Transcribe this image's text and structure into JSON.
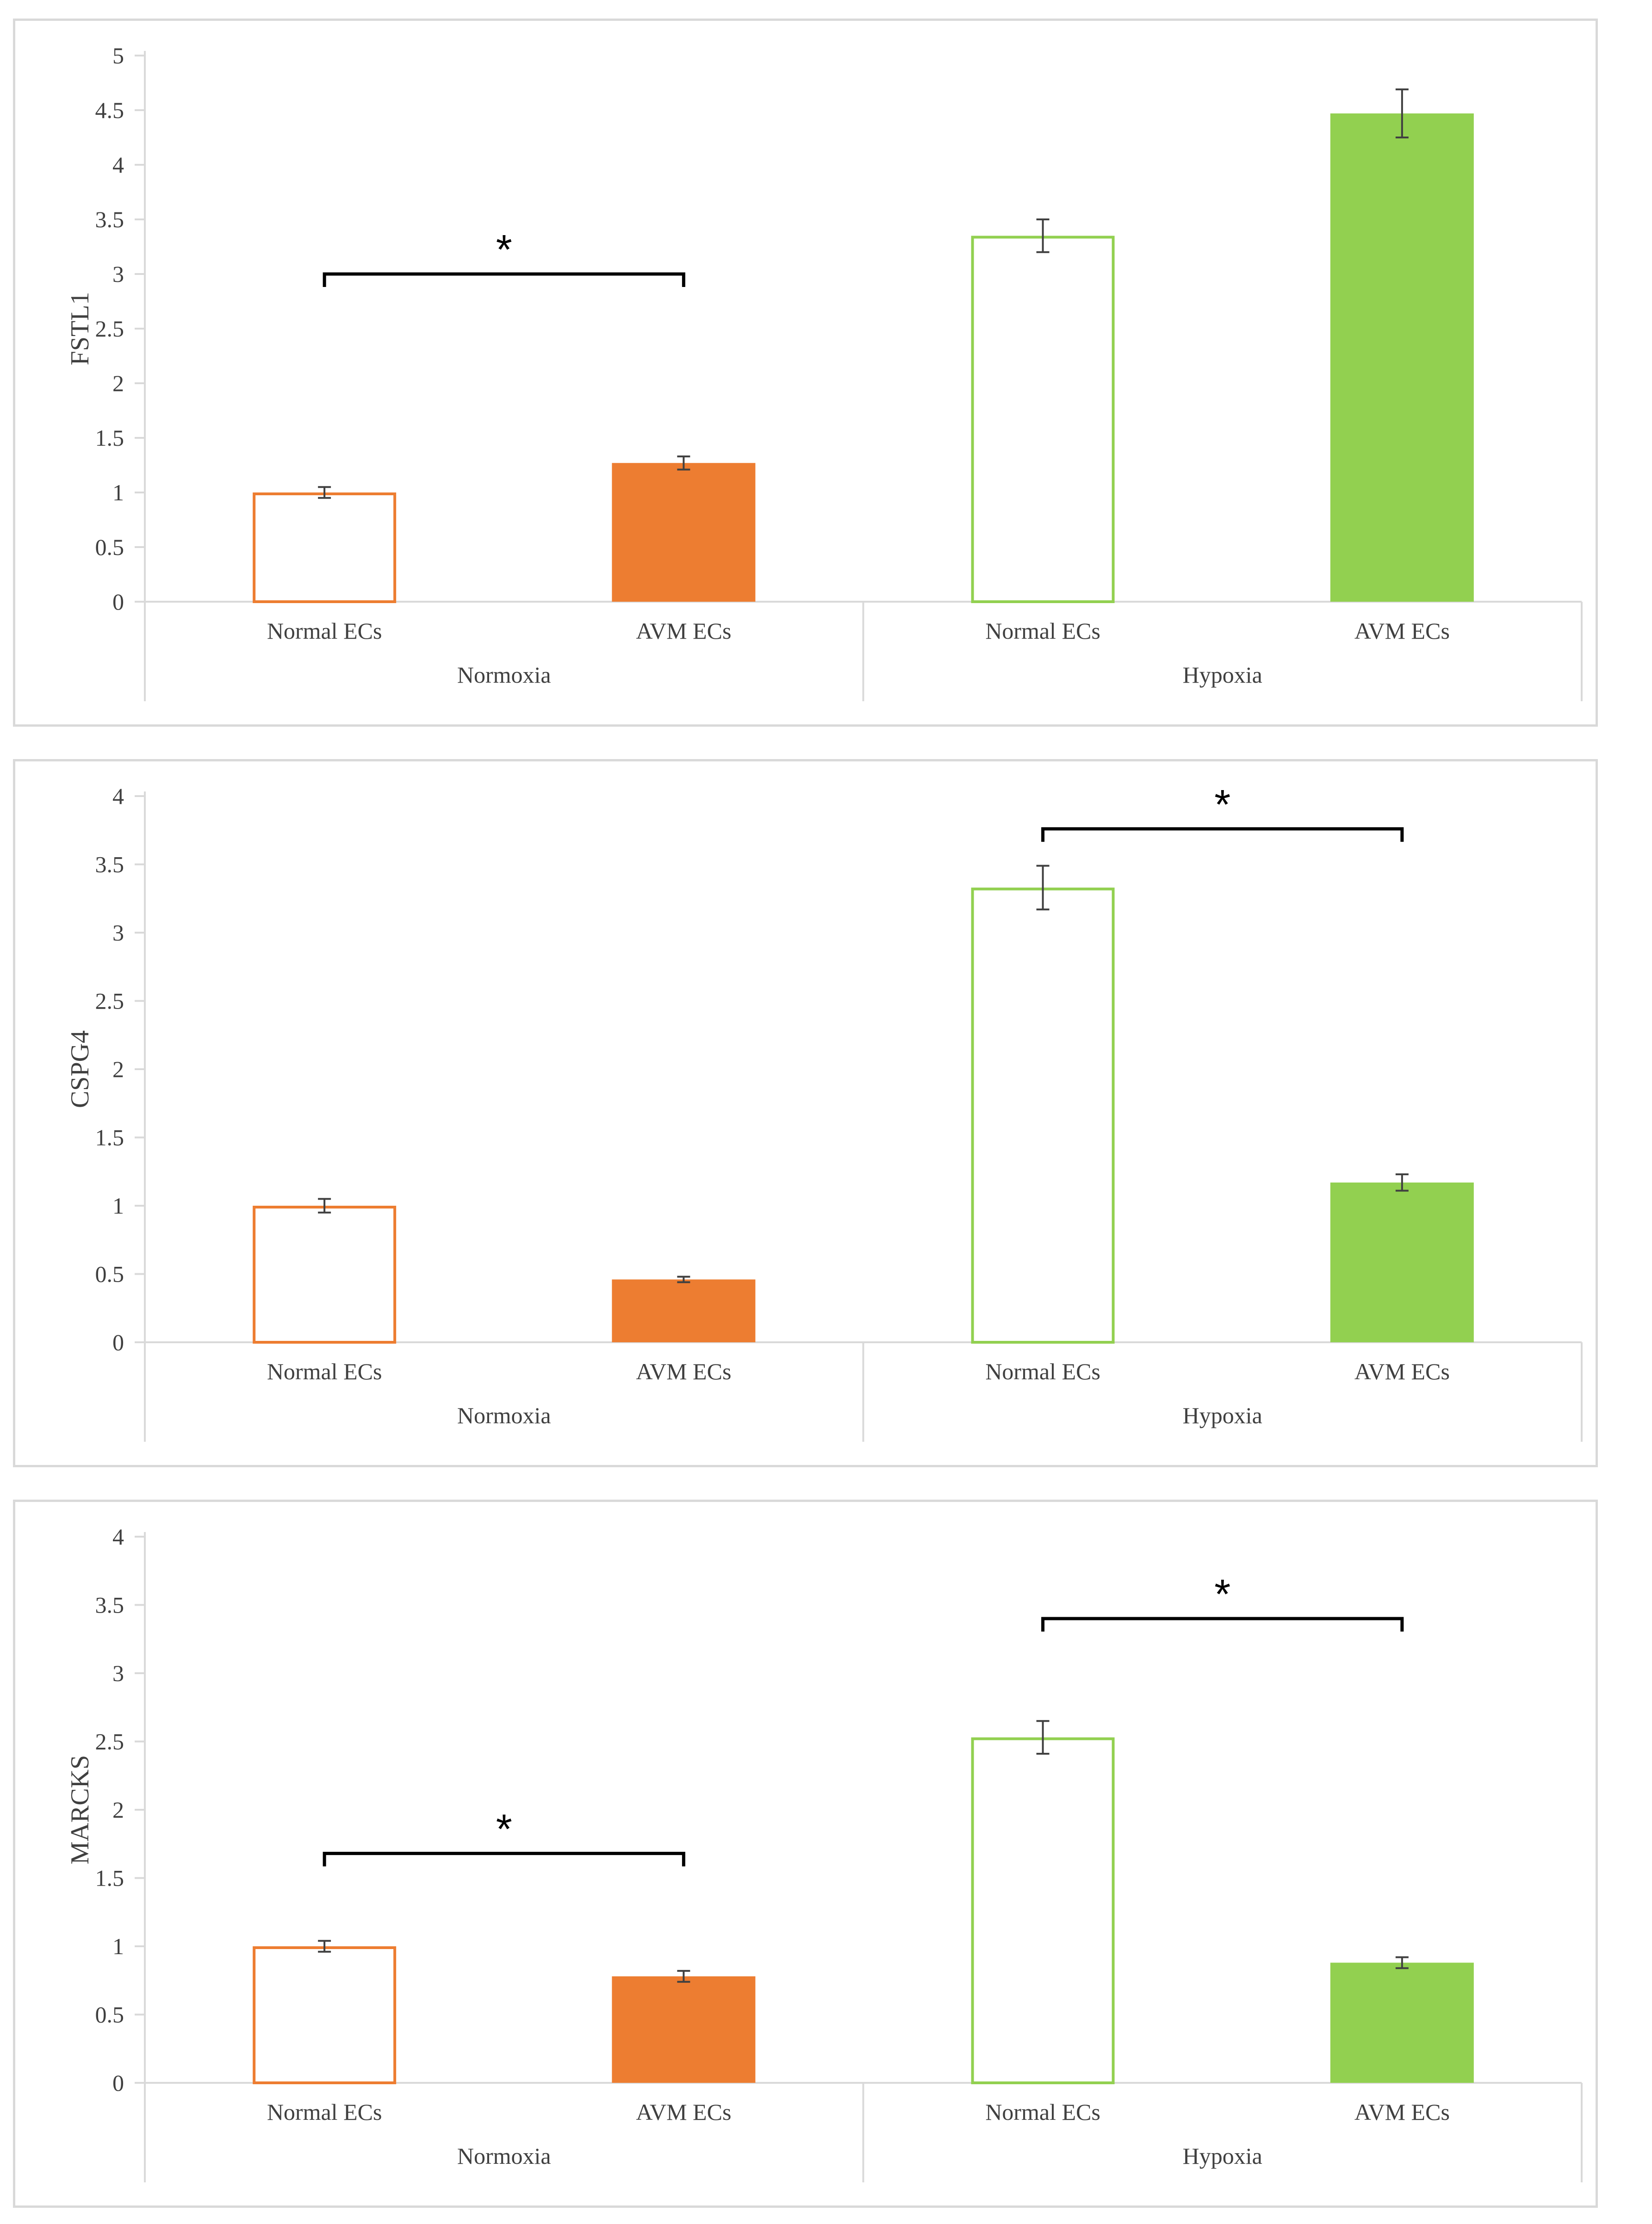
{
  "colors": {
    "normoxia": "#ed7d31",
    "hypoxia": "#92d050",
    "axis": "#d9d9d9",
    "errorbar": "#404040",
    "bracket": "#000000"
  },
  "chart_data": [
    {
      "type": "bar",
      "ylabel": "FSTL1",
      "ylim": [
        0,
        5
      ],
      "yticks": [
        0,
        0.5,
        1,
        1.5,
        2,
        2.5,
        3,
        3.5,
        4,
        4.5,
        5
      ],
      "ytick_labels": [
        "0",
        "0.5",
        "1",
        "1.5",
        "2",
        "2.5",
        "3",
        "3.5",
        "4",
        "4.5",
        "5"
      ],
      "groups": [
        "Normoxia",
        "Hypoxia"
      ],
      "categories": [
        "Normal ECs",
        "AVM ECs",
        "Normal ECs",
        "AVM ECs"
      ],
      "bars": [
        {
          "group": "Normoxia",
          "category": "Normal ECs",
          "value": 1.0,
          "error": 0.05,
          "filled": false
        },
        {
          "group": "Normoxia",
          "category": "AVM ECs",
          "value": 1.27,
          "error": 0.06,
          "filled": true
        },
        {
          "group": "Hypoxia",
          "category": "Normal ECs",
          "value": 3.35,
          "error": 0.15,
          "filled": false
        },
        {
          "group": "Hypoxia",
          "category": "AVM ECs",
          "value": 4.47,
          "error": 0.22,
          "filled": true
        }
      ],
      "significance": [
        {
          "from": 0,
          "to": 1,
          "level": 3.0,
          "label": "*"
        }
      ]
    },
    {
      "type": "bar",
      "ylabel": "CSPG4",
      "ylim": [
        0,
        4
      ],
      "yticks": [
        0,
        0.5,
        1,
        1.5,
        2,
        2.5,
        3,
        3.5,
        4
      ],
      "ytick_labels": [
        "0",
        "0.5",
        "1",
        "1.5",
        "2",
        "2.5",
        "3",
        "3.5",
        "4"
      ],
      "groups": [
        "Normoxia",
        "Hypoxia"
      ],
      "categories": [
        "Normal ECs",
        "AVM ECs",
        "Normal ECs",
        "AVM ECs"
      ],
      "bars": [
        {
          "group": "Normoxia",
          "category": "Normal ECs",
          "value": 1.0,
          "error": 0.05,
          "filled": false
        },
        {
          "group": "Normoxia",
          "category": "AVM ECs",
          "value": 0.46,
          "error": 0.02,
          "filled": true
        },
        {
          "group": "Hypoxia",
          "category": "Normal ECs",
          "value": 3.33,
          "error": 0.16,
          "filled": false
        },
        {
          "group": "Hypoxia",
          "category": "AVM ECs",
          "value": 1.17,
          "error": 0.06,
          "filled": true
        }
      ],
      "significance": [
        {
          "from": 2,
          "to": 3,
          "level": 3.76,
          "label": "*"
        }
      ]
    },
    {
      "type": "bar",
      "ylabel": "MARCKS",
      "ylim": [
        0,
        4
      ],
      "yticks": [
        0,
        0.5,
        1,
        1.5,
        2,
        2.5,
        3,
        3.5,
        4
      ],
      "ytick_labels": [
        "0",
        "0.5",
        "1",
        "1.5",
        "2",
        "2.5",
        "3",
        "3.5",
        "4"
      ],
      "groups": [
        "Normoxia",
        "Hypoxia"
      ],
      "categories": [
        "Normal ECs",
        "AVM ECs",
        "Normal ECs",
        "AVM ECs"
      ],
      "bars": [
        {
          "group": "Normoxia",
          "category": "Normal ECs",
          "value": 1.0,
          "error": 0.04,
          "filled": false
        },
        {
          "group": "Normoxia",
          "category": "AVM ECs",
          "value": 0.78,
          "error": 0.04,
          "filled": true
        },
        {
          "group": "Hypoxia",
          "category": "Normal ECs",
          "value": 2.53,
          "error": 0.12,
          "filled": false
        },
        {
          "group": "Hypoxia",
          "category": "AVM ECs",
          "value": 0.88,
          "error": 0.04,
          "filled": true
        }
      ],
      "significance": [
        {
          "from": 0,
          "to": 1,
          "level": 1.68,
          "label": "*"
        },
        {
          "from": 2,
          "to": 3,
          "level": 3.4,
          "label": "*"
        }
      ]
    }
  ]
}
